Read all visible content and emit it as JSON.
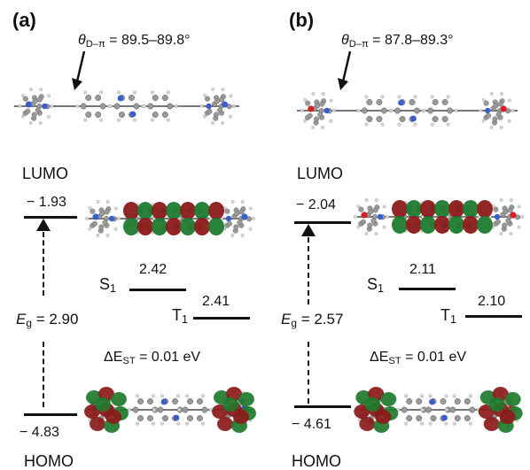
{
  "panels": [
    {
      "label": "(a)",
      "theta": {
        "symbol": "θ",
        "subscript": "D–π",
        "rest": " = 89.5–89.8°"
      },
      "lumo_label": "LUMO",
      "lumo_energy": "− 1.93",
      "homo_label": "HOMO",
      "homo_energy": "− 4.83",
      "s1_label": "S",
      "s1_sub": "1",
      "s1_value": "2.42",
      "t1_label": "T",
      "t1_sub": "1",
      "t1_value": "2.41",
      "eg": {
        "symbol": "E",
        "subscript": "g",
        "rest": " = 2.90"
      },
      "dest": {
        "symbol": "ΔE",
        "subscript": "ST",
        "rest": " = 0.01 eV"
      },
      "donor_atom_color": "#3a5fcd"
    },
    {
      "label": "(b)",
      "theta": {
        "symbol": "θ",
        "subscript": "D–π",
        "rest": " = 87.8–89.3°"
      },
      "lumo_label": "LUMO",
      "lumo_energy": "− 2.04",
      "homo_label": "HOMO",
      "homo_energy": "− 4.61",
      "s1_label": "S",
      "s1_sub": "1",
      "s1_value": "2.11",
      "t1_label": "T",
      "t1_sub": "1",
      "t1_value": "2.10",
      "eg": {
        "symbol": "E",
        "subscript": "g",
        "rest": " = 2.57"
      },
      "dest": {
        "symbol": "ΔE",
        "subscript": "ST",
        "rest": " = 0.01 eV"
      },
      "donor_atom_color": "#d42020"
    }
  ],
  "colors": {
    "orbital_positive": "#8b1a1a",
    "orbital_negative": "#1f7a2e",
    "carbon": "#9a9a9a",
    "hydrogen": "#d8d8d8",
    "nitrogen": "#3a5fcd",
    "oxygen": "#d42020"
  }
}
